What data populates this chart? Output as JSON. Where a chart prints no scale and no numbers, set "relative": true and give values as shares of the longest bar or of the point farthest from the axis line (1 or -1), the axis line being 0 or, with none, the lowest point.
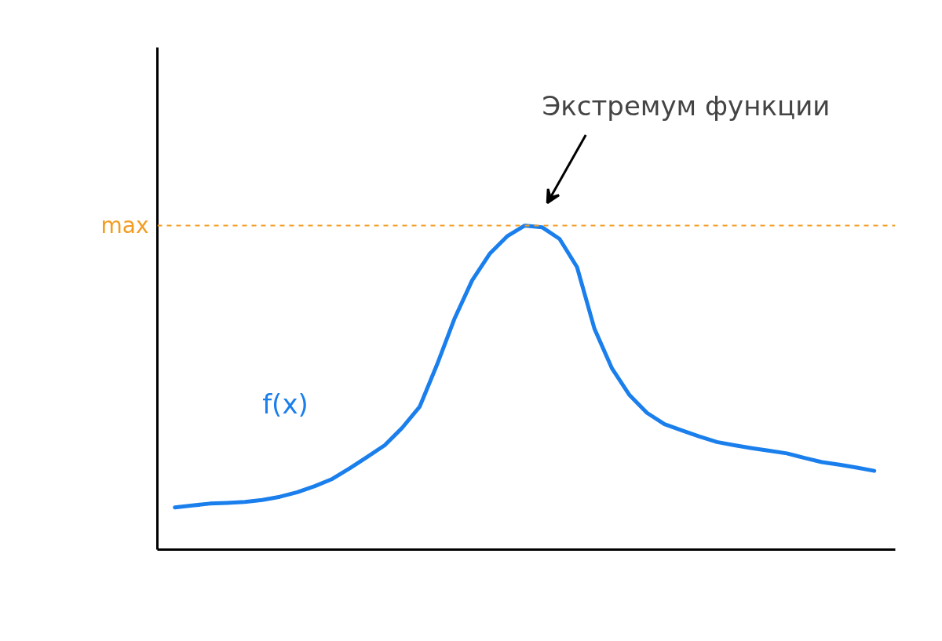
{
  "chart_data": {
    "type": "line",
    "relative": true,
    "categories": [
      null,
      null,
      null,
      null,
      null,
      null,
      null,
      null,
      null,
      null,
      null,
      null,
      null,
      null,
      null,
      null,
      null,
      null,
      null,
      null,
      null,
      null,
      null,
      null,
      null,
      null,
      null,
      null,
      null,
      null,
      null,
      null,
      null,
      null,
      null,
      null,
      null,
      null,
      null,
      null,
      null
    ],
    "series": [
      {
        "name": "f(x)",
        "color": "#1a7fec",
        "values": [
          0.13,
          0.136,
          0.142,
          0.144,
          0.147,
          0.153,
          0.163,
          0.177,
          0.196,
          0.218,
          0.251,
          0.286,
          0.322,
          0.376,
          0.441,
          0.572,
          0.714,
          0.831,
          0.913,
          0.967,
          1.0,
          0.995,
          0.959,
          0.872,
          0.681,
          0.559,
          0.477,
          0.422,
          0.387,
          0.368,
          0.349,
          0.332,
          0.322,
          0.313,
          0.305,
          0.297,
          0.283,
          0.27,
          0.262,
          0.253,
          0.243
        ]
      }
    ],
    "ref_lines": [
      {
        "axis": "y",
        "value": 1.0,
        "label": "max",
        "color": "#f39c1f",
        "line_style": "dashed"
      }
    ],
    "annotations": [
      "Экстремум функции"
    ]
  }
}
